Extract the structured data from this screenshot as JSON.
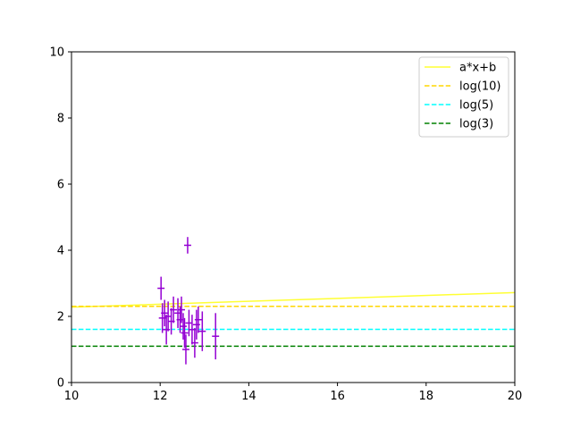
{
  "chart_data": {
    "type": "scatter",
    "title": "",
    "xlabel": "",
    "ylabel": "",
    "xlim": [
      10,
      20
    ],
    "ylim": [
      0,
      10
    ],
    "xticks": [
      10,
      12,
      14,
      16,
      18,
      20
    ],
    "yticks": [
      0,
      2,
      4,
      6,
      8,
      10
    ],
    "grid": false,
    "legend_position": "top-right",
    "series": [
      {
        "name": "a*x+b",
        "kind": "line",
        "style": "solid",
        "color": "#ffff33",
        "x": [
          10,
          20
        ],
        "y": [
          2.28,
          2.72
        ]
      },
      {
        "name": "log(10)",
        "kind": "line",
        "style": "dashed",
        "color": "#ffd700",
        "x": [
          10,
          20
        ],
        "y": [
          2.303,
          2.303
        ]
      },
      {
        "name": "log(5)",
        "kind": "line",
        "style": "dashed",
        "color": "#00ffff",
        "x": [
          10,
          20
        ],
        "y": [
          1.609,
          1.609
        ]
      },
      {
        "name": "log(3)",
        "kind": "line",
        "style": "dashed",
        "color": "#008000",
        "x": [
          10,
          20
        ],
        "y": [
          1.099,
          1.099
        ]
      }
    ],
    "error_points": {
      "color": "#9400d3",
      "points": [
        {
          "x": 12.02,
          "y": 2.85,
          "yerr": 0.35,
          "xerr": 0.08
        },
        {
          "x": 12.05,
          "y": 1.95,
          "yerr": 0.45,
          "xerr": 0.08
        },
        {
          "x": 12.1,
          "y": 2.1,
          "yerr": 0.4,
          "xerr": 0.08
        },
        {
          "x": 12.14,
          "y": 1.6,
          "yerr": 0.45,
          "xerr": 0.08
        },
        {
          "x": 12.18,
          "y": 2.0,
          "yerr": 0.45,
          "xerr": 0.08
        },
        {
          "x": 12.25,
          "y": 1.85,
          "yerr": 0.4,
          "xerr": 0.08
        },
        {
          "x": 12.3,
          "y": 2.2,
          "yerr": 0.4,
          "xerr": 0.08
        },
        {
          "x": 12.4,
          "y": 2.1,
          "yerr": 0.45,
          "xerr": 0.08
        },
        {
          "x": 12.45,
          "y": 1.9,
          "yerr": 0.4,
          "xerr": 0.08
        },
        {
          "x": 12.48,
          "y": 2.2,
          "yerr": 0.4,
          "xerr": 0.08
        },
        {
          "x": 12.52,
          "y": 1.7,
          "yerr": 0.4,
          "xerr": 0.08
        },
        {
          "x": 12.55,
          "y": 1.5,
          "yerr": 0.45,
          "xerr": 0.08
        },
        {
          "x": 12.58,
          "y": 1.0,
          "yerr": 0.45,
          "xerr": 0.08
        },
        {
          "x": 12.62,
          "y": 4.15,
          "yerr": 0.25,
          "xerr": 0.08
        },
        {
          "x": 12.65,
          "y": 1.8,
          "yerr": 0.4,
          "xerr": 0.08
        },
        {
          "x": 12.72,
          "y": 1.6,
          "yerr": 0.45,
          "xerr": 0.08
        },
        {
          "x": 12.78,
          "y": 1.2,
          "yerr": 0.45,
          "xerr": 0.08
        },
        {
          "x": 12.82,
          "y": 1.75,
          "yerr": 0.45,
          "xerr": 0.08
        },
        {
          "x": 12.86,
          "y": 1.9,
          "yerr": 0.4,
          "xerr": 0.08
        },
        {
          "x": 12.95,
          "y": 1.55,
          "yerr": 0.6,
          "xerr": 0.08
        },
        {
          "x": 13.25,
          "y": 1.4,
          "yerr": 0.7,
          "xerr": 0.08
        }
      ]
    }
  }
}
